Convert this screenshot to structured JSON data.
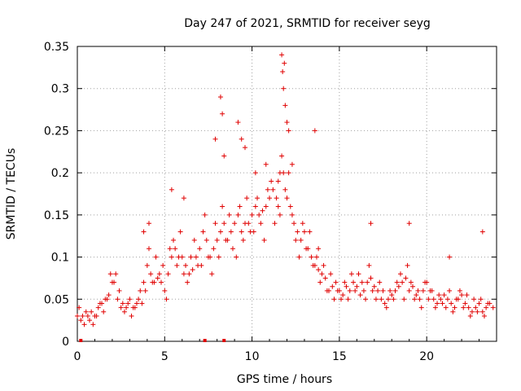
{
  "chart_data": {
    "type": "scatter",
    "title": "Day 247 of 2021, SRMTID for receiver seyg",
    "xlabel": "GPS time / hours",
    "ylabel": "SRMTID / TECUs",
    "xlim": [
      0,
      24
    ],
    "ylim": [
      0,
      0.35
    ],
    "xticks": [
      0,
      5,
      10,
      15,
      20
    ],
    "xtick_labels": [
      "0",
      "5",
      "10",
      "15",
      "20"
    ],
    "yticks": [
      0,
      0.05,
      0.1,
      0.15,
      0.2,
      0.25,
      0.3,
      0.35
    ],
    "ytick_labels": [
      "0",
      "0.05",
      "0.1",
      "0.15",
      "0.2",
      "0.25",
      "0.3",
      "0.35"
    ],
    "grid": true,
    "marker": "+",
    "color": "#e00000",
    "series": [
      {
        "name": "SRMTID",
        "x": [
          0.0,
          0.2,
          0.4,
          0.6,
          0.8,
          1.0,
          1.2,
          1.4,
          1.6,
          1.8,
          2.0,
          2.2,
          2.4,
          2.6,
          2.8,
          3.0,
          3.2,
          3.4,
          3.6,
          3.8,
          4.0,
          4.2,
          4.4,
          4.6,
          4.8,
          5.0,
          5.2,
          5.4,
          5.6,
          5.8,
          6.0,
          6.2,
          6.4,
          6.6,
          6.8,
          7.0,
          7.2,
          7.4,
          7.6,
          7.8,
          8.0,
          8.2,
          8.4,
          8.6,
          8.8,
          9.0,
          9.2,
          9.4,
          9.6,
          9.8,
          10.0,
          10.2,
          10.4,
          10.6,
          10.8,
          11.0,
          11.2,
          11.4,
          11.6,
          11.8,
          12.0,
          12.2,
          12.4,
          12.6,
          12.8,
          13.0,
          13.2,
          13.4,
          13.6,
          13.8,
          14.0,
          14.2,
          14.4,
          14.6,
          14.8,
          15.0,
          15.2,
          15.4,
          15.6,
          15.8,
          16.0,
          16.2,
          16.4,
          16.6,
          16.8,
          17.0,
          17.2,
          17.4,
          17.6,
          17.8,
          18.0,
          18.2,
          18.4,
          18.6,
          18.8,
          19.0,
          19.2,
          19.4,
          19.6,
          19.8,
          20.0,
          20.2,
          20.4,
          20.6,
          20.8,
          21.0,
          21.2,
          21.4,
          21.6,
          21.8,
          22.0,
          22.2,
          22.4,
          22.6,
          22.8,
          23.0,
          23.2,
          23.4,
          23.6,
          23.8,
          0.1,
          0.3,
          0.5,
          0.7,
          0.9,
          1.1,
          1.3,
          1.5,
          1.7,
          1.9,
          2.1,
          2.3,
          2.5,
          2.7,
          2.9,
          3.1,
          3.3,
          3.5,
          3.7,
          3.9,
          4.1,
          4.3,
          4.5,
          4.7,
          4.9,
          5.1,
          5.3,
          5.5,
          5.7,
          5.9,
          6.1,
          6.3,
          6.5,
          6.7,
          6.9,
          7.1,
          7.3,
          7.5,
          7.7,
          7.9,
          8.1,
          8.3,
          8.5,
          8.7,
          8.9,
          9.1,
          9.3,
          9.5,
          9.7,
          9.9,
          10.1,
          10.3,
          10.5,
          10.7,
          10.9,
          11.1,
          11.3,
          11.5,
          11.7,
          11.9,
          12.1,
          12.3,
          12.5,
          12.7,
          12.9,
          13.1,
          13.3,
          13.5,
          13.7,
          13.9,
          14.1,
          14.3,
          14.5,
          14.7,
          14.9,
          15.1,
          15.3,
          15.5,
          15.7,
          15.9,
          16.1,
          16.3,
          16.5,
          16.7,
          16.9,
          17.1,
          17.3,
          17.5,
          17.7,
          17.9,
          18.1,
          18.3,
          18.5,
          18.7,
          18.9,
          19.1,
          19.3,
          19.5,
          19.7,
          19.9,
          20.1,
          20.3,
          20.5,
          20.7,
          20.9,
          21.1,
          21.3,
          21.5,
          21.7,
          21.9,
          22.1,
          22.3,
          22.5,
          22.7,
          22.9,
          23.1,
          23.3,
          23.5,
          8.2,
          8.3,
          8.4,
          9.2,
          9.4,
          10.8,
          11.7,
          11.75,
          11.8,
          11.85,
          11.9,
          12.0,
          12.1,
          11.6,
          11.5,
          13.8,
          0.2,
          7.3,
          8.4,
          13.6,
          9.6,
          10.2,
          12.3,
          7.9,
          4.1,
          3.8,
          16.8,
          19.0,
          21.3,
          23.2,
          5.4,
          6.1
        ],
        "y": [
          0.03,
          0.025,
          0.02,
          0.03,
          0.035,
          0.03,
          0.04,
          0.045,
          0.05,
          0.055,
          0.07,
          0.08,
          0.06,
          0.045,
          0.04,
          0.05,
          0.04,
          0.045,
          0.06,
          0.07,
          0.09,
          0.08,
          0.07,
          0.075,
          0.07,
          0.06,
          0.08,
          0.1,
          0.11,
          0.1,
          0.1,
          0.09,
          0.08,
          0.085,
          0.1,
          0.11,
          0.13,
          0.12,
          0.1,
          0.11,
          0.12,
          0.13,
          0.14,
          0.12,
          0.13,
          0.14,
          0.15,
          0.13,
          0.14,
          0.14,
          0.15,
          0.16,
          0.15,
          0.155,
          0.16,
          0.17,
          0.18,
          0.17,
          0.15,
          0.2,
          0.17,
          0.16,
          0.14,
          0.13,
          0.12,
          0.13,
          0.11,
          0.1,
          0.09,
          0.085,
          0.08,
          0.075,
          0.06,
          0.065,
          0.07,
          0.06,
          0.055,
          0.065,
          0.06,
          0.07,
          0.065,
          0.055,
          0.06,
          0.07,
          0.075,
          0.065,
          0.06,
          0.05,
          0.045,
          0.05,
          0.055,
          0.06,
          0.065,
          0.07,
          0.075,
          0.06,
          0.065,
          0.055,
          0.05,
          0.06,
          0.07,
          0.06,
          0.05,
          0.045,
          0.05,
          0.055,
          0.05,
          0.045,
          0.04,
          0.05,
          0.055,
          0.045,
          0.04,
          0.035,
          0.04,
          0.045,
          0.035,
          0.04,
          0.045,
          0.04,
          0.04,
          0.03,
          0.035,
          0.025,
          0.02,
          0.03,
          0.045,
          0.035,
          0.05,
          0.08,
          0.07,
          0.05,
          0.04,
          0.035,
          0.045,
          0.03,
          0.04,
          0.05,
          0.045,
          0.06,
          0.11,
          0.07,
          0.1,
          0.08,
          0.09,
          0.05,
          0.11,
          0.12,
          0.09,
          0.13,
          0.08,
          0.07,
          0.1,
          0.12,
          0.09,
          0.09,
          0.15,
          0.1,
          0.08,
          0.14,
          0.1,
          0.16,
          0.12,
          0.15,
          0.11,
          0.1,
          0.16,
          0.12,
          0.17,
          0.13,
          0.13,
          0.17,
          0.14,
          0.12,
          0.18,
          0.19,
          0.14,
          0.16,
          0.22,
          0.18,
          0.2,
          0.15,
          0.12,
          0.1,
          0.14,
          0.11,
          0.13,
          0.09,
          0.1,
          0.07,
          0.09,
          0.06,
          0.08,
          0.05,
          0.06,
          0.05,
          0.07,
          0.05,
          0.08,
          0.06,
          0.08,
          0.07,
          0.05,
          0.09,
          0.06,
          0.05,
          0.07,
          0.06,
          0.04,
          0.06,
          0.05,
          0.07,
          0.08,
          0.05,
          0.09,
          0.07,
          0.05,
          0.06,
          0.04,
          0.07,
          0.05,
          0.06,
          0.04,
          0.055,
          0.045,
          0.04,
          0.06,
          0.035,
          0.05,
          0.06,
          0.04,
          0.055,
          0.03,
          0.05,
          0.035,
          0.05,
          0.03,
          0.045,
          0.29,
          0.27,
          0.22,
          0.26,
          0.24,
          0.21,
          0.34,
          0.32,
          0.3,
          0.33,
          0.28,
          0.26,
          0.25,
          0.2,
          0.19,
          0.11,
          0.0,
          0.0,
          0.0,
          0.25,
          0.23,
          0.2,
          0.21,
          0.24,
          0.14,
          0.13,
          0.14,
          0.14,
          0.1,
          0.13,
          0.18,
          0.17
        ]
      }
    ]
  }
}
